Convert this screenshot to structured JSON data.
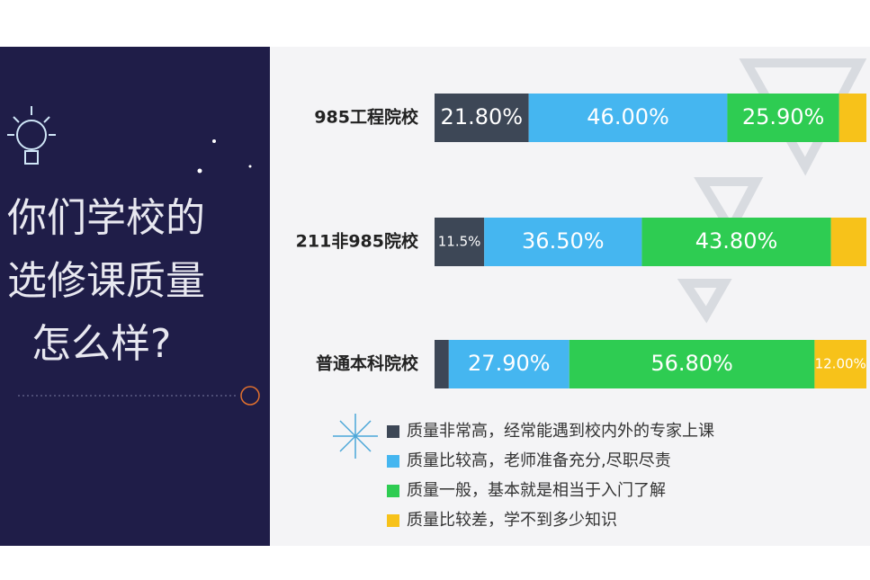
{
  "chart_data": {
    "type": "stacked-bar-horizontal",
    "title_lines": [
      "你们学校的",
      "选修课质量",
      "怎么样?"
    ],
    "categories": [
      "985工程院校",
      "211非985院校",
      "普通本科院校"
    ],
    "xlim": [
      0,
      100
    ],
    "series": [
      {
        "name": "质量非常高，经常能遇到校内外的专家上课",
        "color": "#3d4756",
        "values": [
          21.8,
          11.5,
          3.3
        ],
        "value_labels": [
          "21.80%",
          "11.5%",
          null
        ]
      },
      {
        "name": "质量比较高，老师准备充分,尽职尽责",
        "color": "#45b6f0",
        "values": [
          46.0,
          36.5,
          27.9
        ],
        "value_labels": [
          "46.00%",
          "36.50%",
          "27.90%"
        ]
      },
      {
        "name": "质量一般，基本就是相当于入门了解",
        "color": "#2ecc52",
        "values": [
          25.9,
          43.8,
          56.8
        ],
        "value_labels": [
          "25.90%",
          "43.80%",
          "56.80%"
        ]
      },
      {
        "name": "质量比较差，学不到多少知识",
        "color": "#f7c21a",
        "values": [
          6.3,
          8.2,
          12.0
        ],
        "value_labels": [
          null,
          null,
          "12.00%"
        ]
      }
    ]
  }
}
